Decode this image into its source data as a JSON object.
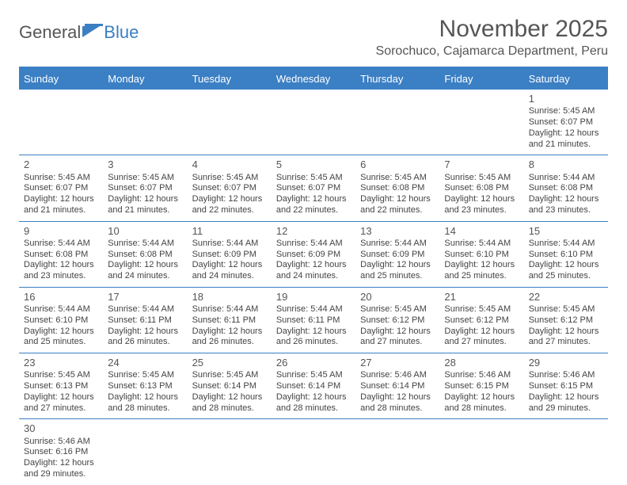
{
  "logo": {
    "text1": "General",
    "text2": "Blue"
  },
  "title": "November 2025",
  "location": "Sorochuco, Cajamarca Department, Peru",
  "colors": {
    "accent": "#3b7fc4",
    "text": "#555555",
    "body": "#444444"
  },
  "day_headers": [
    "Sunday",
    "Monday",
    "Tuesday",
    "Wednesday",
    "Thursday",
    "Friday",
    "Saturday"
  ],
  "weeks": [
    [
      null,
      null,
      null,
      null,
      null,
      null,
      {
        "d": "1",
        "sr": "5:45 AM",
        "ss": "6:07 PM",
        "dl": "12 hours and 21 minutes."
      }
    ],
    [
      {
        "d": "2",
        "sr": "5:45 AM",
        "ss": "6:07 PM",
        "dl": "12 hours and 21 minutes."
      },
      {
        "d": "3",
        "sr": "5:45 AM",
        "ss": "6:07 PM",
        "dl": "12 hours and 21 minutes."
      },
      {
        "d": "4",
        "sr": "5:45 AM",
        "ss": "6:07 PM",
        "dl": "12 hours and 22 minutes."
      },
      {
        "d": "5",
        "sr": "5:45 AM",
        "ss": "6:07 PM",
        "dl": "12 hours and 22 minutes."
      },
      {
        "d": "6",
        "sr": "5:45 AM",
        "ss": "6:08 PM",
        "dl": "12 hours and 22 minutes."
      },
      {
        "d": "7",
        "sr": "5:45 AM",
        "ss": "6:08 PM",
        "dl": "12 hours and 23 minutes."
      },
      {
        "d": "8",
        "sr": "5:44 AM",
        "ss": "6:08 PM",
        "dl": "12 hours and 23 minutes."
      }
    ],
    [
      {
        "d": "9",
        "sr": "5:44 AM",
        "ss": "6:08 PM",
        "dl": "12 hours and 23 minutes."
      },
      {
        "d": "10",
        "sr": "5:44 AM",
        "ss": "6:08 PM",
        "dl": "12 hours and 24 minutes."
      },
      {
        "d": "11",
        "sr": "5:44 AM",
        "ss": "6:09 PM",
        "dl": "12 hours and 24 minutes."
      },
      {
        "d": "12",
        "sr": "5:44 AM",
        "ss": "6:09 PM",
        "dl": "12 hours and 24 minutes."
      },
      {
        "d": "13",
        "sr": "5:44 AM",
        "ss": "6:09 PM",
        "dl": "12 hours and 25 minutes."
      },
      {
        "d": "14",
        "sr": "5:44 AM",
        "ss": "6:10 PM",
        "dl": "12 hours and 25 minutes."
      },
      {
        "d": "15",
        "sr": "5:44 AM",
        "ss": "6:10 PM",
        "dl": "12 hours and 25 minutes."
      }
    ],
    [
      {
        "d": "16",
        "sr": "5:44 AM",
        "ss": "6:10 PM",
        "dl": "12 hours and 25 minutes."
      },
      {
        "d": "17",
        "sr": "5:44 AM",
        "ss": "6:11 PM",
        "dl": "12 hours and 26 minutes."
      },
      {
        "d": "18",
        "sr": "5:44 AM",
        "ss": "6:11 PM",
        "dl": "12 hours and 26 minutes."
      },
      {
        "d": "19",
        "sr": "5:44 AM",
        "ss": "6:11 PM",
        "dl": "12 hours and 26 minutes."
      },
      {
        "d": "20",
        "sr": "5:45 AM",
        "ss": "6:12 PM",
        "dl": "12 hours and 27 minutes."
      },
      {
        "d": "21",
        "sr": "5:45 AM",
        "ss": "6:12 PM",
        "dl": "12 hours and 27 minutes."
      },
      {
        "d": "22",
        "sr": "5:45 AM",
        "ss": "6:12 PM",
        "dl": "12 hours and 27 minutes."
      }
    ],
    [
      {
        "d": "23",
        "sr": "5:45 AM",
        "ss": "6:13 PM",
        "dl": "12 hours and 27 minutes."
      },
      {
        "d": "24",
        "sr": "5:45 AM",
        "ss": "6:13 PM",
        "dl": "12 hours and 28 minutes."
      },
      {
        "d": "25",
        "sr": "5:45 AM",
        "ss": "6:14 PM",
        "dl": "12 hours and 28 minutes."
      },
      {
        "d": "26",
        "sr": "5:45 AM",
        "ss": "6:14 PM",
        "dl": "12 hours and 28 minutes."
      },
      {
        "d": "27",
        "sr": "5:46 AM",
        "ss": "6:14 PM",
        "dl": "12 hours and 28 minutes."
      },
      {
        "d": "28",
        "sr": "5:46 AM",
        "ss": "6:15 PM",
        "dl": "12 hours and 28 minutes."
      },
      {
        "d": "29",
        "sr": "5:46 AM",
        "ss": "6:15 PM",
        "dl": "12 hours and 29 minutes."
      }
    ],
    [
      {
        "d": "30",
        "sr": "5:46 AM",
        "ss": "6:16 PM",
        "dl": "12 hours and 29 minutes."
      },
      null,
      null,
      null,
      null,
      null,
      null
    ]
  ],
  "labels": {
    "sunrise": "Sunrise: ",
    "sunset": "Sunset: ",
    "daylight": "Daylight: "
  }
}
